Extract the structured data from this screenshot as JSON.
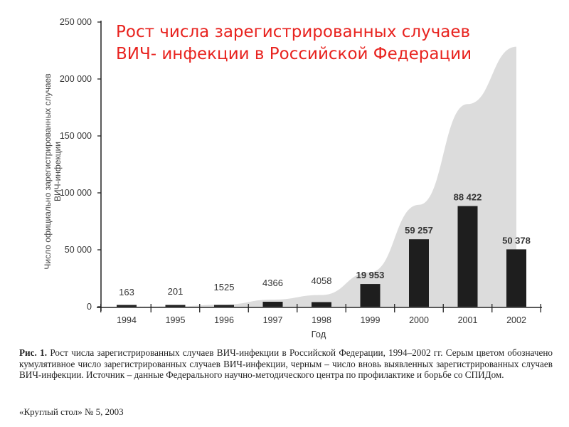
{
  "title_lines": [
    "Рост числа зарегистрированных случаев",
    "ВИЧ- инфекции в Российской Федерации"
  ],
  "caption": {
    "label": "Рис. 1.",
    "text": "Рост числа зарегистрированных случаев ВИЧ-инфекции в Российской Федерации, 1994–2002 гг. Серым цветом обозначено кумулятивное число зарегистрированных случаев ВИЧ-инфекции, черным – число вновь выявленных зарегистрированных случаев ВИЧ-инфекции. Источник – данные Федерального научно-методического центра по профилактике и борьбе со СПИДом."
  },
  "source": "«Круглый стол» № 5, 2003",
  "chart_data": {
    "type": "bar",
    "title": "",
    "xlabel": "Год",
    "ylabel": "Число официально зарегистрированных случаев ВИЧ-инфекции",
    "ylim": [
      0,
      250000
    ],
    "yticks": [
      0,
      50000,
      100000,
      150000,
      200000,
      250000
    ],
    "ytick_labels": [
      "0",
      "50 000",
      "100 000",
      "150 000",
      "200 000",
      "250 000"
    ],
    "categories": [
      "1994",
      "1995",
      "1996",
      "1997",
      "1998",
      "1999",
      "2000",
      "2001",
      "2002"
    ],
    "series": [
      {
        "name": "Новые случаи",
        "type": "bar",
        "color": "#1e1e1e",
        "values": [
          163,
          201,
          1525,
          4366,
          4058,
          19953,
          59257,
          88422,
          50378
        ],
        "labels": [
          "163",
          "201",
          "1525",
          "4366",
          "4058",
          "19 953",
          "59 257",
          "88 422",
          "50 378"
        ]
      },
      {
        "name": "Кумулятивное число",
        "type": "area",
        "color": "#dcdcdc",
        "values": [
          163,
          364,
          1889,
          6255,
          10313,
          30266,
          89523,
          177945,
          228323
        ]
      }
    ],
    "grid": false
  }
}
